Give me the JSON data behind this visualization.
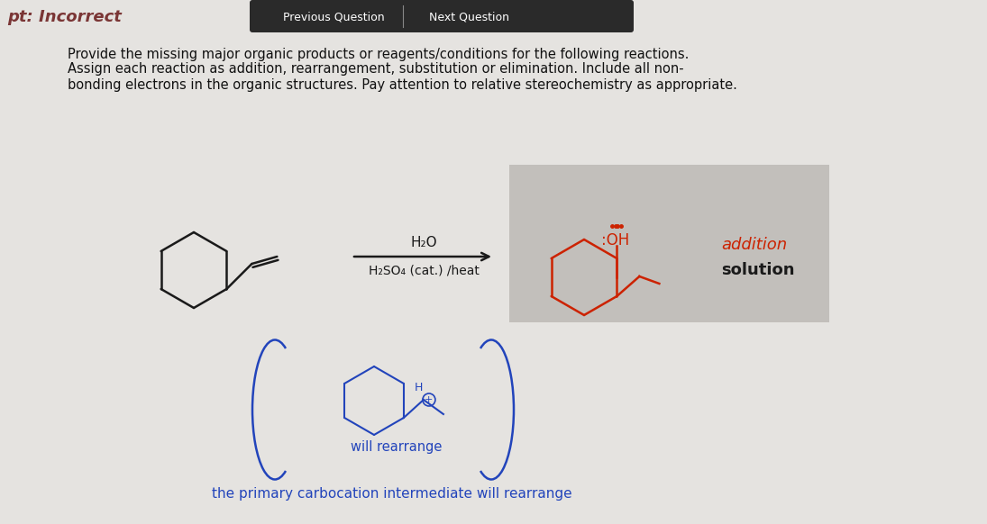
{
  "page_bg": "#e5e3e0",
  "header_bg": "#2a2a2a",
  "header_text_color": "#ffffff",
  "incorrect_color": "#7a3535",
  "title_text": "Provide the missing major organic products or reagents/conditions for the following reactions.",
  "title_text2": "Assign each reaction as addition, rearrangement, substitution or elimination. Include all non-",
  "title_text3": "bonding electrons in the organic structures. Pay attention to relative stereochemistry as appropriate.",
  "reagent1": "H₂O",
  "reagent2": "H₂SO₄ (cat.) /heat",
  "addition_color": "#cc2200",
  "solution_color": "#1a1a1a",
  "blue_color": "#2244bb",
  "rearrange_text": "will rearrange",
  "primary_text": "the primary carbocation intermediate will rearrange",
  "incorrect_label": "pt: Incorrect",
  "prev_btn": "Previous Question",
  "next_btn": "Next Question",
  "reaction_box_color": "#c2bfbb",
  "line_color": "#1a1a1a"
}
